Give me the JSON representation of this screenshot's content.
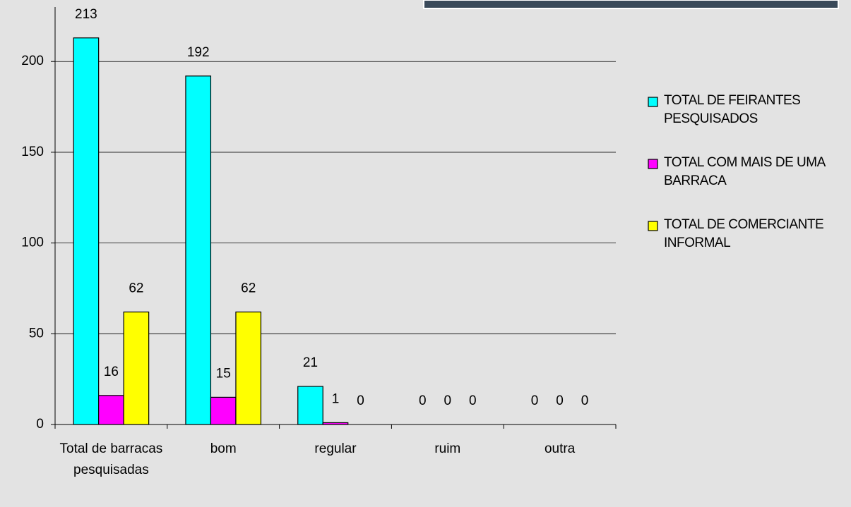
{
  "chart_data": {
    "type": "bar",
    "categories": [
      "Total de barracas pesquisadas",
      "bom",
      "regular",
      "ruim",
      "outra"
    ],
    "series": [
      {
        "name": "TOTAL DE FEIRANTES PESQUISADOS",
        "color": "#00ffff",
        "values": [
          213,
          192,
          21,
          0,
          0
        ]
      },
      {
        "name": "TOTAL COM MAIS DE UMA BARRACA",
        "color": "#ff00ff",
        "values": [
          16,
          15,
          1,
          0,
          0
        ]
      },
      {
        "name": "TOTAL DE COMERCIANTE INFORMAL",
        "color": "#ffff00",
        "values": [
          62,
          62,
          0,
          0,
          0
        ]
      }
    ],
    "ylim": [
      0,
      230
    ],
    "yticks": [
      0,
      50,
      100,
      150,
      200
    ],
    "grid": true,
    "legend": "right"
  }
}
